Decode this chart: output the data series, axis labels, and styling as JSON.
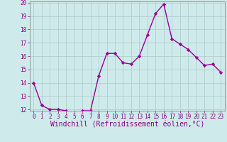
{
  "x": [
    0,
    1,
    2,
    3,
    4,
    5,
    6,
    7,
    8,
    9,
    10,
    11,
    12,
    13,
    14,
    15,
    16,
    17,
    18,
    19,
    20,
    21,
    22,
    23
  ],
  "y": [
    14.0,
    12.3,
    12.0,
    12.0,
    11.9,
    11.7,
    11.9,
    11.9,
    14.5,
    16.2,
    16.2,
    15.5,
    15.4,
    16.0,
    17.6,
    19.2,
    19.9,
    17.3,
    16.9,
    16.5,
    15.9,
    15.3,
    15.4,
    14.8
  ],
  "line_color": "#990099",
  "marker": "D",
  "marker_size": 2.2,
  "bg_color": "#ceeaea",
  "grid_color": "#adc8c8",
  "xlabel": "Windchill (Refroidissement éolien,°C)",
  "ylim": [
    12,
    20
  ],
  "xlim": [
    -0.5,
    23.5
  ],
  "yticks": [
    12,
    13,
    14,
    15,
    16,
    17,
    18,
    19,
    20
  ],
  "xticks": [
    0,
    1,
    2,
    3,
    4,
    5,
    6,
    7,
    8,
    9,
    10,
    11,
    12,
    13,
    14,
    15,
    16,
    17,
    18,
    19,
    20,
    21,
    22,
    23
  ],
  "tick_label_fontsize": 5.5,
  "xlabel_fontsize": 7.0,
  "line_width": 1.0,
  "text_color": "#880088"
}
